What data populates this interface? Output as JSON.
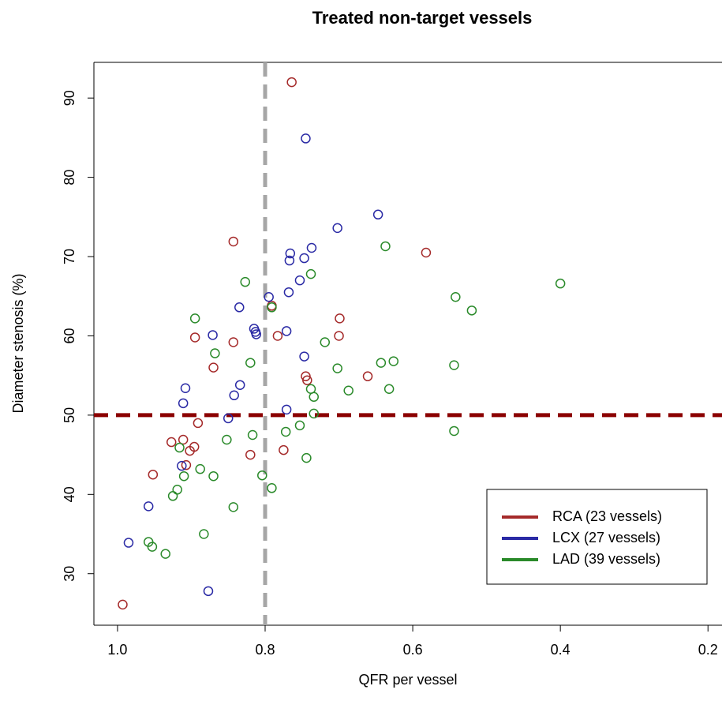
{
  "chart_data": {
    "type": "scatter",
    "title": "Treated non-target vessels",
    "x_label": "QFR per vessel",
    "y_label": "Diameter stenosis (%)",
    "xlim": [
      1.032,
      0.181
    ],
    "ylim": [
      23.5,
      94.5
    ],
    "xticks": [
      {
        "value": 1,
        "label": "1.0"
      },
      0.8,
      0.6,
      0.4,
      0.2
    ],
    "yticks": [
      30,
      40,
      50,
      60,
      70,
      80,
      90
    ],
    "vline": 0.8,
    "hline": 50,
    "legend": "bottom-right",
    "series": [
      {
        "name": "RCA (23 vessels)",
        "color": "#a52a2a",
        "x": [
          0.764,
          0.843,
          0.582,
          0.699,
          0.791,
          0.895,
          0.843,
          0.783,
          0.7,
          0.87,
          0.745,
          0.743,
          0.661,
          0.891,
          0.927,
          0.911,
          0.896,
          0.902,
          0.82,
          0.775,
          0.952,
          0.907,
          0.993
        ],
        "values": [
          92.0,
          71.9,
          70.5,
          62.2,
          63.8,
          59.8,
          59.2,
          60.0,
          60.0,
          56.0,
          54.9,
          54.4,
          54.9,
          49.0,
          46.6,
          46.9,
          46.0,
          45.5,
          45.0,
          45.6,
          42.5,
          43.7,
          26.1
        ]
      },
      {
        "name": "LCX (27 vessels)",
        "color": "#2a2aa5",
        "x": [
          0.745,
          0.647,
          0.702,
          0.766,
          0.737,
          0.767,
          0.747,
          0.753,
          0.768,
          0.795,
          0.835,
          0.815,
          0.813,
          0.812,
          0.771,
          0.871,
          0.747,
          0.834,
          0.842,
          0.908,
          0.911,
          0.771,
          0.85,
          0.913,
          0.958,
          0.985,
          0.877
        ],
        "values": [
          84.9,
          75.3,
          73.6,
          70.4,
          71.1,
          69.5,
          69.8,
          67.0,
          65.5,
          64.9,
          63.6,
          60.9,
          60.5,
          60.2,
          60.6,
          60.1,
          57.4,
          53.8,
          52.5,
          53.4,
          51.5,
          50.7,
          49.6,
          43.6,
          38.5,
          33.9,
          27.8
        ]
      },
      {
        "name": "LAD (39 vessels)",
        "color": "#2a8a2a",
        "x": [
          0.4,
          0.542,
          0.52,
          0.637,
          0.827,
          0.738,
          0.791,
          0.895,
          0.868,
          0.82,
          0.719,
          0.702,
          0.643,
          0.626,
          0.544,
          0.687,
          0.632,
          0.738,
          0.734,
          0.734,
          0.753,
          0.772,
          0.817,
          0.852,
          0.916,
          0.544,
          0.744,
          0.888,
          0.91,
          0.87,
          0.804,
          0.919,
          0.925,
          0.791,
          0.843,
          0.883,
          0.958,
          0.953,
          0.935
        ],
        "values": [
          66.6,
          64.9,
          63.2,
          71.3,
          66.8,
          67.8,
          63.6,
          62.2,
          57.8,
          56.6,
          59.2,
          55.9,
          56.6,
          56.8,
          56.3,
          53.1,
          53.3,
          53.3,
          52.3,
          50.2,
          48.7,
          47.9,
          47.5,
          46.9,
          45.9,
          48.0,
          44.6,
          43.2,
          42.3,
          42.3,
          42.4,
          40.6,
          39.8,
          40.8,
          38.4,
          35.0,
          34.0,
          33.4,
          32.5
        ]
      }
    ]
  }
}
